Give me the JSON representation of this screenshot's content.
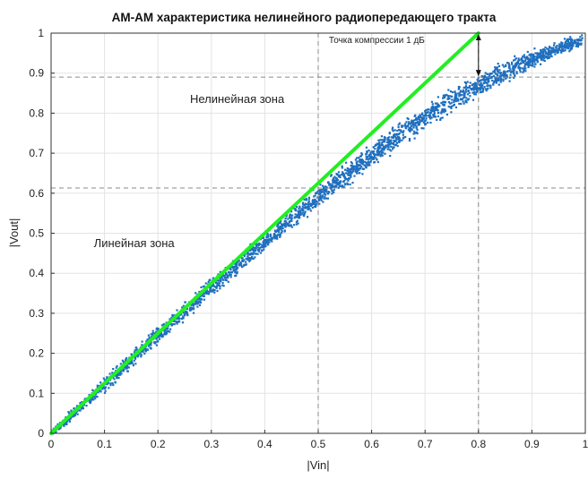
{
  "chart_data": {
    "type": "scatter",
    "title": "AM-AM характеристика нелинейного радиопередающего тракта",
    "xlabel": "|Vin|",
    "ylabel": "|Vout|",
    "xlim": [
      0,
      1
    ],
    "ylim": [
      0,
      1
    ],
    "xticks": [
      "0",
      "0.1",
      "0.2",
      "0.3",
      "0.4",
      "0.5",
      "0.6",
      "0.7",
      "0.8",
      "0.9",
      "1"
    ],
    "yticks": [
      "0",
      "0.1",
      "0.2",
      "0.3",
      "0.4",
      "0.5",
      "0.6",
      "0.7",
      "0.8",
      "0.9",
      "1"
    ],
    "grid": true,
    "series": [
      {
        "kind": "scatter-band",
        "color": "#1f6fbf",
        "x": [
          0.0,
          0.05,
          0.1,
          0.15,
          0.2,
          0.25,
          0.3,
          0.35,
          0.4,
          0.45,
          0.5,
          0.55,
          0.6,
          0.65,
          0.7,
          0.75,
          0.8,
          0.85,
          0.9,
          0.95,
          1.0
        ],
        "center": [
          0.0,
          0.06,
          0.12,
          0.185,
          0.245,
          0.305,
          0.365,
          0.42,
          0.478,
          0.535,
          0.59,
          0.643,
          0.695,
          0.743,
          0.79,
          0.832,
          0.872,
          0.905,
          0.935,
          0.962,
          0.985
        ],
        "spread": [
          0.012,
          0.022,
          0.026,
          0.028,
          0.03,
          0.03,
          0.03,
          0.03,
          0.03,
          0.032,
          0.034,
          0.036,
          0.038,
          0.04,
          0.04,
          0.04,
          0.038,
          0.035,
          0.03,
          0.025,
          0.02
        ]
      },
      {
        "kind": "line",
        "color": "#22ee22",
        "x": [
          0,
          0.8
        ],
        "y": [
          0,
          1.0
        ]
      }
    ],
    "reference_lines": {
      "hlines": [
        0.89,
        0.613
      ],
      "vlines": [
        0.8,
        0.5
      ]
    },
    "annotations": [
      {
        "name": "compression-label",
        "text": "Точка компрессии 1 дБ",
        "x": 0.52,
        "y": 0.975
      },
      {
        "name": "nonlinear-zone-label",
        "text": "Нелинейная зона",
        "x": 0.26,
        "y": 0.825
      },
      {
        "name": "linear-zone-label",
        "text": "Линейная зона",
        "x": 0.08,
        "y": 0.465
      }
    ],
    "compression_arrow": {
      "x": 0.8,
      "y_top": 1.0,
      "y_bottom": 0.89
    }
  }
}
